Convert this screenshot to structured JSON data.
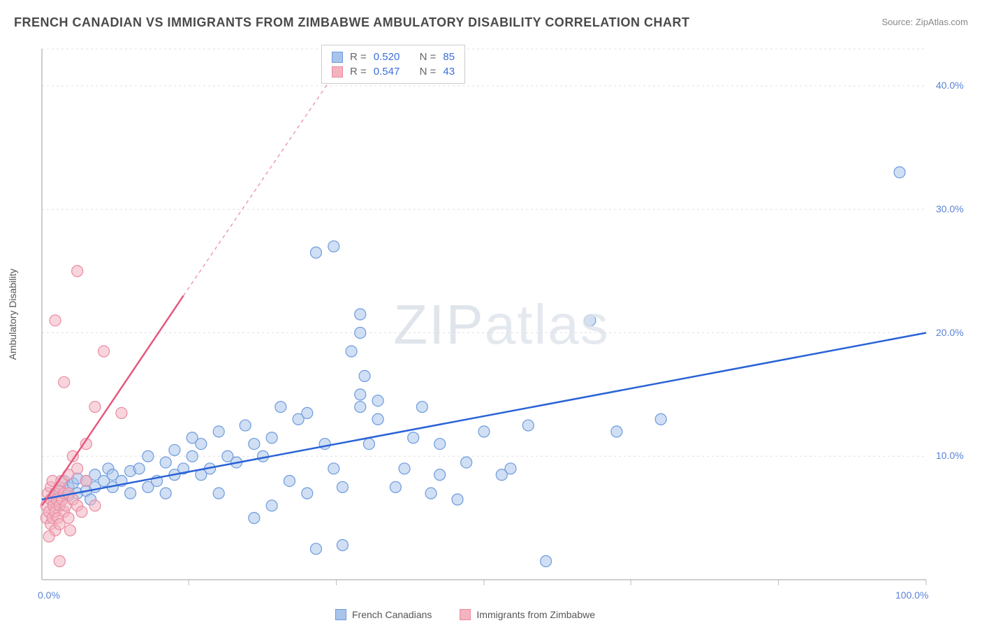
{
  "title": "FRENCH CANADIAN VS IMMIGRANTS FROM ZIMBABWE AMBULATORY DISABILITY CORRELATION CHART",
  "source_prefix": "Source: ",
  "source_name": "ZipAtlas.com",
  "watermark_a": "ZIP",
  "watermark_b": "atlas",
  "y_axis_label": "Ambulatory Disability",
  "chart": {
    "type": "scatter",
    "background_color": "#ffffff",
    "grid_color": "#e0e0e0",
    "axis_color": "#bdbdbd",
    "xlim": [
      0,
      100
    ],
    "ylim": [
      0,
      43
    ],
    "x_ticks": [
      0,
      100
    ],
    "x_tick_labels": [
      "0.0%",
      "100.0%"
    ],
    "y_ticks": [
      10,
      20,
      30,
      40
    ],
    "y_tick_labels": [
      "10.0%",
      "20.0%",
      "30.0%",
      "40.0%"
    ],
    "x_gridlines": [
      16.6,
      33.3,
      50,
      66.6,
      83.3,
      100
    ],
    "marker_radius": 8,
    "series": [
      {
        "name": "French Canadians",
        "fill": "#a9c4ea",
        "stroke": "#6d9adf",
        "fill_opacity": 0.55,
        "trend": {
          "color": "#2a63d6",
          "width": 2.5,
          "x1": 0,
          "y1": 6.5,
          "x2": 100,
          "y2": 20.0,
          "dash_after_x": 100
        },
        "R": 0.52,
        "N": 85,
        "points": [
          [
            1,
            6.5
          ],
          [
            1.5,
            7
          ],
          [
            2,
            7.2
          ],
          [
            2,
            6
          ],
          [
            2.5,
            8
          ],
          [
            3,
            7.5
          ],
          [
            3,
            6.8
          ],
          [
            3.5,
            7.8
          ],
          [
            4,
            7
          ],
          [
            4,
            8.2
          ],
          [
            5,
            8
          ],
          [
            5,
            7.2
          ],
          [
            5.5,
            6.5
          ],
          [
            6,
            8.5
          ],
          [
            6,
            7.5
          ],
          [
            7,
            8
          ],
          [
            7.5,
            9
          ],
          [
            8,
            7.5
          ],
          [
            8,
            8.5
          ],
          [
            9,
            8
          ],
          [
            10,
            7
          ],
          [
            10,
            8.8
          ],
          [
            11,
            9
          ],
          [
            12,
            7.5
          ],
          [
            12,
            10
          ],
          [
            13,
            8
          ],
          [
            14,
            9.5
          ],
          [
            14,
            7
          ],
          [
            15,
            10.5
          ],
          [
            15,
            8.5
          ],
          [
            16,
            9
          ],
          [
            17,
            10
          ],
          [
            17,
            11.5
          ],
          [
            18,
            8.5
          ],
          [
            18,
            11
          ],
          [
            19,
            9
          ],
          [
            20,
            7
          ],
          [
            20,
            12
          ],
          [
            21,
            10
          ],
          [
            22,
            9.5
          ],
          [
            23,
            12.5
          ],
          [
            24,
            5
          ],
          [
            24,
            11
          ],
          [
            25,
            10
          ],
          [
            26,
            6
          ],
          [
            26,
            11.5
          ],
          [
            27,
            14
          ],
          [
            28,
            8
          ],
          [
            29,
            13
          ],
          [
            30,
            7
          ],
          [
            30,
            13.5
          ],
          [
            31,
            2.5
          ],
          [
            32,
            11
          ],
          [
            33,
            9
          ],
          [
            34,
            7.5
          ],
          [
            34,
            2.8
          ],
          [
            35,
            18.5
          ],
          [
            36,
            14
          ],
          [
            36,
            15
          ],
          [
            36.5,
            16.5
          ],
          [
            37,
            11
          ],
          [
            38,
            13
          ],
          [
            38,
            14.5
          ],
          [
            40,
            7.5
          ],
          [
            41,
            9
          ],
          [
            42,
            11.5
          ],
          [
            43,
            14
          ],
          [
            44,
            7
          ],
          [
            45,
            8.5
          ],
          [
            45,
            11
          ],
          [
            47,
            6.5
          ],
          [
            48,
            9.5
          ],
          [
            50,
            12
          ],
          [
            52,
            8.5
          ],
          [
            53,
            9
          ],
          [
            55,
            12.5
          ],
          [
            57,
            1.5
          ],
          [
            62,
            21
          ],
          [
            65,
            12
          ],
          [
            70,
            13
          ],
          [
            33,
            27
          ],
          [
            36,
            20
          ],
          [
            36,
            21.5
          ],
          [
            97,
            33
          ],
          [
            31,
            26.5
          ]
        ]
      },
      {
        "name": "Immigrants from Zimbabwe",
        "fill": "#f3b3bf",
        "stroke": "#ea8aa0",
        "fill_opacity": 0.55,
        "trend": {
          "color": "#e6577c",
          "width": 2.5,
          "x1": 0,
          "y1": 6.0,
          "x2": 16,
          "y2": 23,
          "dashed_ext_x2": 35,
          "dashed_ext_y2": 43
        },
        "R": 0.547,
        "N": 43,
        "points": [
          [
            0.5,
            5
          ],
          [
            0.5,
            6
          ],
          [
            0.7,
            7
          ],
          [
            0.8,
            5.5
          ],
          [
            1,
            4.5
          ],
          [
            1,
            6.5
          ],
          [
            1,
            7.5
          ],
          [
            1.2,
            5
          ],
          [
            1.2,
            8
          ],
          [
            1.3,
            6
          ],
          [
            1.5,
            5.5
          ],
          [
            1.5,
            7
          ],
          [
            1.5,
            4
          ],
          [
            1.7,
            6.5
          ],
          [
            1.8,
            5
          ],
          [
            2,
            6
          ],
          [
            2,
            7.5
          ],
          [
            2,
            4.5
          ],
          [
            2.2,
            8
          ],
          [
            2.3,
            6.5
          ],
          [
            2.5,
            5.5
          ],
          [
            2.5,
            7
          ],
          [
            2.7,
            6
          ],
          [
            3,
            5
          ],
          [
            3,
            8.5
          ],
          [
            3,
            7
          ],
          [
            3.2,
            4
          ],
          [
            3.5,
            6.5
          ],
          [
            3.5,
            10
          ],
          [
            4,
            6
          ],
          [
            4,
            9
          ],
          [
            4.5,
            5.5
          ],
          [
            5,
            11
          ],
          [
            5,
            8
          ],
          [
            6,
            6
          ],
          [
            6,
            14
          ],
          [
            7,
            18.5
          ],
          [
            2,
            1.5
          ],
          [
            2.5,
            16
          ],
          [
            0.8,
            3.5
          ],
          [
            4,
            25
          ],
          [
            1.5,
            21
          ],
          [
            9,
            13.5
          ]
        ]
      }
    ]
  },
  "r_legend": {
    "rows": [
      {
        "swatch_fill": "#a9c4ea",
        "swatch_stroke": "#6d9adf",
        "R_label": "R =",
        "R_val": "0.520",
        "N_label": "N =",
        "N_val": "85"
      },
      {
        "swatch_fill": "#f3b3bf",
        "swatch_stroke": "#ea8aa0",
        "R_label": "R =",
        "R_val": "0.547",
        "N_label": "N =",
        "N_val": "43"
      }
    ]
  },
  "bottom_legend": [
    {
      "swatch_fill": "#a9c4ea",
      "swatch_stroke": "#6d9adf",
      "label": "French Canadians"
    },
    {
      "swatch_fill": "#f3b3bf",
      "swatch_stroke": "#ea8aa0",
      "label": "Immigrants from Zimbabwe"
    }
  ]
}
